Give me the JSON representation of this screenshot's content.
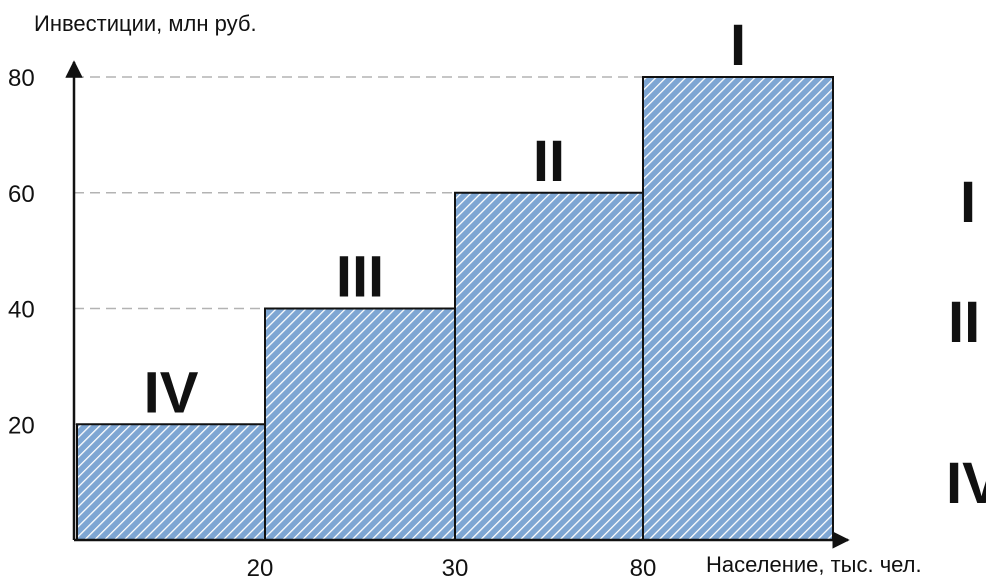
{
  "chart_data": {
    "type": "bar",
    "ylabel": "Инвестиции, млн руб.",
    "xlabel": "Население, тыс. чел.",
    "ylim": [
      0,
      80
    ],
    "yticks": [
      "20",
      "40",
      "60",
      "80"
    ],
    "xticks": [
      "20",
      "30",
      "80"
    ],
    "categories": [
      "IV",
      "III",
      "II",
      "I"
    ],
    "values": [
      20,
      40,
      60,
      80
    ],
    "x_edges": [
      "",
      "20",
      "30",
      "80",
      ""
    ],
    "grid": true,
    "bar_fill": "#7ea6d3",
    "bar_hatch": "diagonal",
    "legend_fragments": [
      "I",
      "II",
      "IV"
    ]
  },
  "colors": {
    "bar_fill": "#7ea6d3",
    "hatch": "#ffffff",
    "axis": "#111111",
    "grid": "#b3b3b3"
  }
}
